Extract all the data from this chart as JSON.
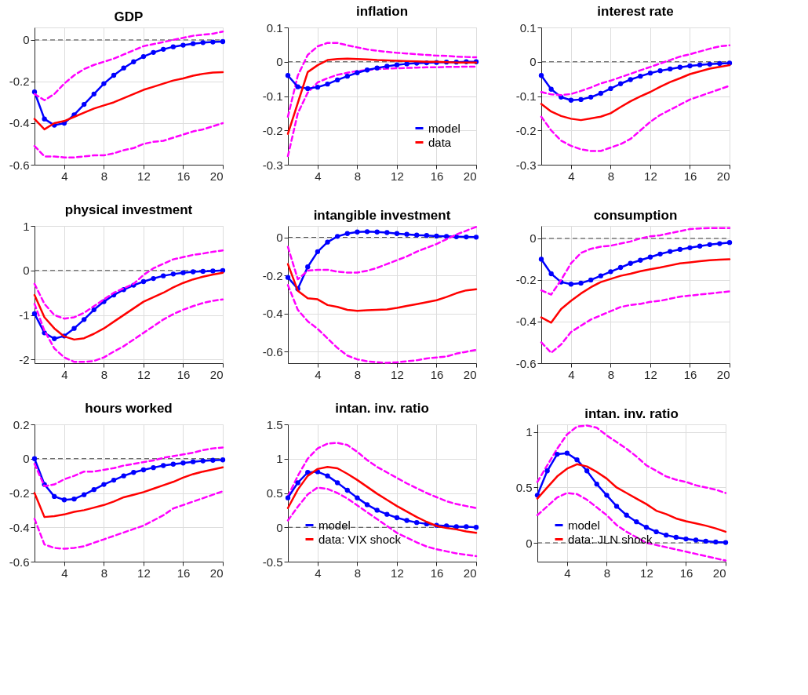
{
  "chart_data": [
    {
      "type": "line",
      "title": "GDP",
      "x": [
        1,
        2,
        3,
        4,
        5,
        6,
        7,
        8,
        9,
        10,
        11,
        12,
        13,
        14,
        15,
        16,
        17,
        18,
        19,
        20
      ],
      "xlim": [
        1,
        20
      ],
      "xticks": [
        4,
        8,
        12,
        16,
        20
      ],
      "ylim": [
        -0.6,
        0.06
      ],
      "yticks": [
        -0.6,
        -0.4,
        -0.2,
        0
      ],
      "grid": true,
      "ref_lines": [
        {
          "axis": "y",
          "value": 0,
          "color": "#404040",
          "line_style": "dashed"
        }
      ],
      "series": [
        {
          "color": "#0000ff",
          "marker": "circle",
          "values": [
            -0.25,
            -0.38,
            -0.41,
            -0.4,
            -0.36,
            -0.31,
            -0.26,
            -0.21,
            -0.17,
            -0.135,
            -0.105,
            -0.08,
            -0.06,
            -0.045,
            -0.033,
            -0.025,
            -0.018,
            -0.013,
            -0.01,
            -0.008
          ]
        },
        {
          "color": "#ff0000",
          "values": [
            -0.38,
            -0.43,
            -0.4,
            -0.39,
            -0.37,
            -0.35,
            -0.33,
            -0.315,
            -0.3,
            -0.28,
            -0.26,
            -0.24,
            -0.225,
            -0.21,
            -0.195,
            -0.185,
            -0.172,
            -0.163,
            -0.157,
            -0.155
          ]
        },
        {
          "color": "#ff00ff",
          "line_style": "dashed",
          "values": [
            -0.26,
            -0.29,
            -0.26,
            -0.21,
            -0.17,
            -0.14,
            -0.12,
            -0.105,
            -0.09,
            -0.07,
            -0.05,
            -0.03,
            -0.02,
            -0.01,
            0.0,
            0.01,
            0.02,
            0.025,
            0.03,
            0.04
          ]
        },
        {
          "color": "#ff00ff",
          "line_style": "dashed",
          "values": [
            -0.51,
            -0.56,
            -0.56,
            -0.565,
            -0.565,
            -0.56,
            -0.555,
            -0.555,
            -0.545,
            -0.53,
            -0.52,
            -0.5,
            -0.49,
            -0.485,
            -0.47,
            -0.455,
            -0.44,
            -0.43,
            -0.415,
            -0.4
          ]
        }
      ]
    },
    {
      "type": "line",
      "title": "inflation",
      "x": [
        1,
        2,
        3,
        4,
        5,
        6,
        7,
        8,
        9,
        10,
        11,
        12,
        13,
        14,
        15,
        16,
        17,
        18,
        19,
        20
      ],
      "xlim": [
        1,
        20
      ],
      "xticks": [
        4,
        8,
        12,
        16,
        20
      ],
      "ylim": [
        -0.3,
        0.1
      ],
      "yticks": [
        -0.3,
        -0.2,
        -0.1,
        0,
        0.1
      ],
      "grid": true,
      "legend": "bottom right",
      "ref_lines": [
        {
          "axis": "y",
          "value": 0,
          "color": "#404040",
          "line_style": "dashed"
        }
      ],
      "series": [
        {
          "name": "model",
          "color": "#0000ff",
          "marker": "circle",
          "values": [
            -0.04,
            -0.073,
            -0.078,
            -0.074,
            -0.065,
            -0.053,
            -0.042,
            -0.032,
            -0.024,
            -0.018,
            -0.013,
            -0.009,
            -0.006,
            -0.004,
            -0.003,
            -0.002,
            -0.001,
            -0.001,
            0,
            0
          ]
        },
        {
          "name": "data",
          "color": "#ff0000",
          "values": [
            -0.21,
            -0.12,
            -0.03,
            -0.01,
            0.005,
            0.008,
            0.009,
            0.008,
            0.007,
            0.005,
            0.004,
            0.003,
            0.002,
            0.001,
            0,
            0,
            -0.001,
            -0.002,
            -0.002,
            -0.002
          ]
        },
        {
          "color": "#ff00ff",
          "line_style": "dashed",
          "values": [
            -0.16,
            -0.04,
            0.02,
            0.045,
            0.055,
            0.055,
            0.048,
            0.042,
            0.036,
            0.032,
            0.029,
            0.026,
            0.024,
            0.022,
            0.02,
            0.018,
            0.017,
            0.015,
            0.014,
            0.013
          ]
        },
        {
          "color": "#ff00ff",
          "line_style": "dashed",
          "values": [
            -0.275,
            -0.15,
            -0.09,
            -0.06,
            -0.048,
            -0.038,
            -0.032,
            -0.027,
            -0.024,
            -0.021,
            -0.02,
            -0.019,
            -0.018,
            -0.017,
            -0.016,
            -0.016,
            -0.015,
            -0.015,
            -0.014,
            -0.014
          ]
        }
      ]
    },
    {
      "type": "line",
      "title": "interest rate",
      "x": [
        1,
        2,
        3,
        4,
        5,
        6,
        7,
        8,
        9,
        10,
        11,
        12,
        13,
        14,
        15,
        16,
        17,
        18,
        19,
        20
      ],
      "xlim": [
        1,
        20
      ],
      "xticks": [
        4,
        8,
        12,
        16,
        20
      ],
      "ylim": [
        -0.3,
        0.1
      ],
      "yticks": [
        -0.3,
        -0.2,
        -0.1,
        0,
        0.1
      ],
      "grid": true,
      "ref_lines": [
        {
          "axis": "y",
          "value": 0,
          "color": "#404040",
          "line_style": "dashed"
        }
      ],
      "series": [
        {
          "color": "#0000ff",
          "marker": "circle",
          "values": [
            -0.04,
            -0.08,
            -0.103,
            -0.112,
            -0.11,
            -0.103,
            -0.092,
            -0.078,
            -0.064,
            -0.052,
            -0.042,
            -0.033,
            -0.026,
            -0.021,
            -0.016,
            -0.012,
            -0.009,
            -0.007,
            -0.005,
            -0.004
          ]
        },
        {
          "color": "#ff0000",
          "values": [
            -0.123,
            -0.145,
            -0.158,
            -0.166,
            -0.17,
            -0.165,
            -0.16,
            -0.15,
            -0.132,
            -0.115,
            -0.101,
            -0.088,
            -0.073,
            -0.059,
            -0.048,
            -0.036,
            -0.028,
            -0.02,
            -0.015,
            -0.01
          ]
        },
        {
          "color": "#ff00ff",
          "line_style": "dashed",
          "values": [
            -0.088,
            -0.095,
            -0.097,
            -0.094,
            -0.085,
            -0.075,
            -0.063,
            -0.055,
            -0.045,
            -0.035,
            -0.025,
            -0.015,
            -0.005,
            0.005,
            0.015,
            0.022,
            0.03,
            0.038,
            0.045,
            0.048
          ]
        },
        {
          "color": "#ff00ff",
          "line_style": "dashed",
          "values": [
            -0.16,
            -0.2,
            -0.23,
            -0.245,
            -0.255,
            -0.26,
            -0.26,
            -0.25,
            -0.24,
            -0.225,
            -0.2,
            -0.175,
            -0.155,
            -0.14,
            -0.125,
            -0.11,
            -0.1,
            -0.09,
            -0.08,
            -0.07
          ]
        }
      ]
    },
    {
      "type": "line",
      "title": "physical investment",
      "x": [
        1,
        2,
        3,
        4,
        5,
        6,
        7,
        8,
        9,
        10,
        11,
        12,
        13,
        14,
        15,
        16,
        17,
        18,
        19,
        20
      ],
      "xlim": [
        1,
        20
      ],
      "xticks": [
        4,
        8,
        12,
        16,
        20
      ],
      "ylim": [
        -2.08,
        1
      ],
      "yticks": [
        -2,
        -1,
        0,
        1
      ],
      "grid": true,
      "ref_lines": [
        {
          "axis": "y",
          "value": 0,
          "color": "#404040",
          "line_style": "dashed"
        }
      ],
      "series": [
        {
          "color": "#0000ff",
          "marker": "circle",
          "values": [
            -0.97,
            -1.4,
            -1.53,
            -1.47,
            -1.3,
            -1.1,
            -0.88,
            -0.7,
            -0.55,
            -0.43,
            -0.33,
            -0.25,
            -0.18,
            -0.12,
            -0.08,
            -0.05,
            -0.03,
            -0.02,
            -0.01,
            0
          ]
        },
        {
          "color": "#ff0000",
          "values": [
            -0.55,
            -1.05,
            -1.3,
            -1.48,
            -1.55,
            -1.52,
            -1.42,
            -1.3,
            -1.15,
            -1.0,
            -0.85,
            -0.7,
            -0.6,
            -0.5,
            -0.38,
            -0.28,
            -0.2,
            -0.14,
            -0.09,
            -0.05
          ]
        },
        {
          "color": "#ff00ff",
          "line_style": "dashed",
          "values": [
            -0.3,
            -0.75,
            -1.0,
            -1.08,
            -1.05,
            -0.95,
            -0.8,
            -0.65,
            -0.5,
            -0.4,
            -0.3,
            -0.1,
            0.05,
            0.15,
            0.25,
            0.3,
            0.35,
            0.38,
            0.42,
            0.45
          ]
        },
        {
          "color": "#ff00ff",
          "line_style": "dashed",
          "values": [
            -0.75,
            -1.35,
            -1.75,
            -1.95,
            -2.05,
            -2.05,
            -2.03,
            -1.95,
            -1.82,
            -1.7,
            -1.55,
            -1.4,
            -1.25,
            -1.1,
            -0.98,
            -0.88,
            -0.8,
            -0.73,
            -0.68,
            -0.65
          ]
        }
      ]
    },
    {
      "type": "line",
      "title": "intangible investment",
      "x": [
        1,
        2,
        3,
        4,
        5,
        6,
        7,
        8,
        9,
        10,
        11,
        12,
        13,
        14,
        15,
        16,
        17,
        18,
        19,
        20
      ],
      "xlim": [
        1,
        20
      ],
      "xticks": [
        4,
        8,
        12,
        16,
        20
      ],
      "ylim": [
        -0.66,
        0.06
      ],
      "yticks": [
        -0.6,
        -0.4,
        -0.2,
        0
      ],
      "grid": true,
      "ref_lines": [
        {
          "axis": "y",
          "value": 0,
          "color": "#404040",
          "line_style": "dashed"
        }
      ],
      "series": [
        {
          "color": "#0000ff",
          "marker": "circle",
          "values": [
            -0.21,
            -0.27,
            -0.155,
            -0.075,
            -0.025,
            0.005,
            0.02,
            0.028,
            0.03,
            0.028,
            0.025,
            0.02,
            0.016,
            0.012,
            0.01,
            0.007,
            0.005,
            0.003,
            0.002,
            0.001
          ]
        },
        {
          "color": "#ff0000",
          "values": [
            -0.14,
            -0.28,
            -0.32,
            -0.325,
            -0.355,
            -0.365,
            -0.38,
            -0.385,
            -0.382,
            -0.38,
            -0.378,
            -0.37,
            -0.36,
            -0.35,
            -0.34,
            -0.33,
            -0.313,
            -0.293,
            -0.278,
            -0.272
          ]
        },
        {
          "color": "#ff00ff",
          "line_style": "dashed",
          "values": [
            -0.05,
            -0.22,
            -0.175,
            -0.17,
            -0.17,
            -0.18,
            -0.185,
            -0.185,
            -0.175,
            -0.16,
            -0.14,
            -0.12,
            -0.1,
            -0.075,
            -0.055,
            -0.035,
            -0.01,
            0.015,
            0.035,
            0.055
          ]
        },
        {
          "color": "#ff00ff",
          "line_style": "dashed",
          "values": [
            -0.25,
            -0.38,
            -0.44,
            -0.48,
            -0.53,
            -0.58,
            -0.62,
            -0.64,
            -0.65,
            -0.655,
            -0.658,
            -0.655,
            -0.65,
            -0.645,
            -0.635,
            -0.63,
            -0.625,
            -0.61,
            -0.6,
            -0.59
          ]
        }
      ]
    },
    {
      "type": "line",
      "title": "consumption",
      "x": [
        1,
        2,
        3,
        4,
        5,
        6,
        7,
        8,
        9,
        10,
        11,
        12,
        13,
        14,
        15,
        16,
        17,
        18,
        19,
        20
      ],
      "xlim": [
        1,
        20
      ],
      "xticks": [
        4,
        8,
        12,
        16,
        20
      ],
      "ylim": [
        -0.6,
        0.06
      ],
      "yticks": [
        -0.6,
        -0.4,
        -0.2,
        0
      ],
      "grid": true,
      "ref_lines": [
        {
          "axis": "y",
          "value": 0,
          "color": "#404040",
          "line_style": "dashed"
        }
      ],
      "series": [
        {
          "color": "#0000ff",
          "marker": "circle",
          "values": [
            -0.1,
            -0.17,
            -0.21,
            -0.22,
            -0.215,
            -0.2,
            -0.18,
            -0.16,
            -0.14,
            -0.12,
            -0.105,
            -0.09,
            -0.075,
            -0.063,
            -0.053,
            -0.045,
            -0.037,
            -0.03,
            -0.025,
            -0.02
          ]
        },
        {
          "color": "#ff0000",
          "values": [
            -0.38,
            -0.405,
            -0.34,
            -0.3,
            -0.265,
            -0.235,
            -0.21,
            -0.195,
            -0.18,
            -0.17,
            -0.158,
            -0.148,
            -0.14,
            -0.13,
            -0.12,
            -0.115,
            -0.11,
            -0.105,
            -0.102,
            -0.1
          ]
        },
        {
          "color": "#ff00ff",
          "line_style": "dashed",
          "values": [
            -0.25,
            -0.27,
            -0.2,
            -0.12,
            -0.07,
            -0.05,
            -0.04,
            -0.035,
            -0.025,
            -0.015,
            0.0,
            0.01,
            0.015,
            0.025,
            0.035,
            0.045,
            0.048,
            0.05,
            0.05,
            0.05
          ]
        },
        {
          "color": "#ff00ff",
          "line_style": "dashed",
          "values": [
            -0.5,
            -0.55,
            -0.51,
            -0.45,
            -0.42,
            -0.39,
            -0.37,
            -0.35,
            -0.33,
            -0.32,
            -0.315,
            -0.305,
            -0.3,
            -0.29,
            -0.28,
            -0.275,
            -0.27,
            -0.265,
            -0.26,
            -0.255
          ]
        }
      ]
    },
    {
      "type": "line",
      "title": "hours worked",
      "x": [
        1,
        2,
        3,
        4,
        5,
        6,
        7,
        8,
        9,
        10,
        11,
        12,
        13,
        14,
        15,
        16,
        17,
        18,
        19,
        20
      ],
      "xlim": [
        1,
        20
      ],
      "xticks": [
        4,
        8,
        12,
        16,
        20
      ],
      "ylim": [
        -0.6,
        0.2
      ],
      "yticks": [
        -0.6,
        -0.4,
        -0.2,
        0,
        0.2
      ],
      "grid": true,
      "ref_lines": [
        {
          "axis": "y",
          "value": 0,
          "color": "#404040",
          "line_style": "dashed"
        }
      ],
      "series": [
        {
          "color": "#0000ff",
          "marker": "circle",
          "values": [
            0,
            -0.15,
            -0.22,
            -0.24,
            -0.235,
            -0.21,
            -0.18,
            -0.15,
            -0.125,
            -0.1,
            -0.08,
            -0.065,
            -0.052,
            -0.04,
            -0.032,
            -0.025,
            -0.018,
            -0.013,
            -0.009,
            -0.007
          ]
        },
        {
          "color": "#ff0000",
          "values": [
            -0.2,
            -0.34,
            -0.335,
            -0.325,
            -0.31,
            -0.3,
            -0.285,
            -0.27,
            -0.25,
            -0.225,
            -0.21,
            -0.195,
            -0.175,
            -0.155,
            -0.135,
            -0.11,
            -0.09,
            -0.075,
            -0.063,
            -0.05
          ]
        },
        {
          "color": "#ff00ff",
          "line_style": "dashed",
          "values": [
            -0.03,
            -0.16,
            -0.15,
            -0.12,
            -0.1,
            -0.075,
            -0.075,
            -0.065,
            -0.055,
            -0.04,
            -0.03,
            -0.02,
            -0.01,
            0.005,
            0.015,
            0.025,
            0.035,
            0.05,
            0.06,
            0.065
          ]
        },
        {
          "color": "#ff00ff",
          "line_style": "dashed",
          "values": [
            -0.35,
            -0.5,
            -0.52,
            -0.525,
            -0.52,
            -0.51,
            -0.49,
            -0.47,
            -0.45,
            -0.43,
            -0.41,
            -0.39,
            -0.36,
            -0.33,
            -0.29,
            -0.27,
            -0.25,
            -0.23,
            -0.21,
            -0.19
          ]
        }
      ]
    },
    {
      "type": "line",
      "title": "intan. inv. ratio",
      "x": [
        1,
        2,
        3,
        4,
        5,
        6,
        7,
        8,
        9,
        10,
        11,
        12,
        13,
        14,
        15,
        16,
        17,
        18,
        19,
        20
      ],
      "xlim": [
        1,
        20
      ],
      "xticks": [
        4,
        8,
        12,
        16,
        20
      ],
      "ylim": [
        -0.5,
        1.5
      ],
      "yticks": [
        -0.5,
        0,
        0.5,
        1,
        1.5
      ],
      "grid": true,
      "legend": "bottom left",
      "ref_lines": [
        {
          "axis": "y",
          "value": 0,
          "color": "#404040",
          "line_style": "dashed"
        }
      ],
      "series": [
        {
          "name": "model",
          "color": "#0000ff",
          "marker": "circle",
          "values": [
            0.43,
            0.65,
            0.8,
            0.81,
            0.75,
            0.65,
            0.54,
            0.43,
            0.33,
            0.25,
            0.19,
            0.14,
            0.1,
            0.07,
            0.05,
            0.03,
            0.02,
            0.01,
            0.01,
            0.0
          ]
        },
        {
          "name": "data: VIX shock",
          "color": "#ff0000",
          "values": [
            0.28,
            0.55,
            0.75,
            0.85,
            0.88,
            0.86,
            0.78,
            0.69,
            0.59,
            0.49,
            0.4,
            0.31,
            0.23,
            0.15,
            0.08,
            0.02,
            -0.01,
            -0.03,
            -0.06,
            -0.08
          ]
        },
        {
          "color": "#ff00ff",
          "line_style": "dashed",
          "values": [
            0.45,
            0.75,
            1.0,
            1.15,
            1.22,
            1.23,
            1.2,
            1.1,
            0.98,
            0.88,
            0.8,
            0.72,
            0.64,
            0.57,
            0.5,
            0.44,
            0.38,
            0.34,
            0.31,
            0.28
          ]
        },
        {
          "color": "#ff00ff",
          "line_style": "dashed",
          "values": [
            0.1,
            0.3,
            0.48,
            0.58,
            0.56,
            0.5,
            0.42,
            0.32,
            0.22,
            0.12,
            0.02,
            -0.08,
            -0.15,
            -0.22,
            -0.28,
            -0.32,
            -0.35,
            -0.38,
            -0.4,
            -0.42
          ]
        }
      ]
    },
    {
      "type": "line",
      "title": "intan. inv. ratio",
      "x": [
        1,
        2,
        3,
        4,
        5,
        6,
        7,
        8,
        9,
        10,
        11,
        12,
        13,
        14,
        15,
        16,
        17,
        18,
        19,
        20
      ],
      "xlim": [
        1,
        20
      ],
      "xticks": [
        4,
        8,
        12,
        16,
        20
      ],
      "ylim": [
        -0.17,
        1.07
      ],
      "yticks": [
        0,
        0.5,
        1
      ],
      "grid": true,
      "legend": "bottom left",
      "ref_lines": [
        {
          "axis": "y",
          "value": 0,
          "color": "#404040",
          "line_style": "dashed"
        }
      ],
      "series": [
        {
          "name": "model",
          "color": "#0000ff",
          "marker": "circle",
          "values": [
            0.43,
            0.65,
            0.8,
            0.81,
            0.75,
            0.65,
            0.53,
            0.43,
            0.33,
            0.25,
            0.19,
            0.14,
            0.1,
            0.07,
            0.05,
            0.035,
            0.025,
            0.015,
            0.008,
            0.003
          ]
        },
        {
          "name": "data: JLN shock",
          "color": "#ff0000",
          "values": [
            0.4,
            0.5,
            0.6,
            0.67,
            0.71,
            0.69,
            0.64,
            0.58,
            0.5,
            0.45,
            0.4,
            0.35,
            0.29,
            0.26,
            0.22,
            0.195,
            0.175,
            0.155,
            0.13,
            0.1
          ]
        },
        {
          "color": "#ff00ff",
          "line_style": "dashed",
          "values": [
            0.55,
            0.7,
            0.85,
            0.98,
            1.05,
            1.06,
            1.04,
            0.97,
            0.91,
            0.85,
            0.78,
            0.7,
            0.65,
            0.6,
            0.57,
            0.55,
            0.52,
            0.5,
            0.48,
            0.45
          ]
        },
        {
          "color": "#ff00ff",
          "line_style": "dashed",
          "values": [
            0.25,
            0.33,
            0.41,
            0.45,
            0.44,
            0.39,
            0.32,
            0.25,
            0.16,
            0.1,
            0.05,
            0.0,
            -0.02,
            -0.04,
            -0.06,
            -0.08,
            -0.1,
            -0.12,
            -0.14,
            -0.16
          ]
        }
      ]
    }
  ]
}
